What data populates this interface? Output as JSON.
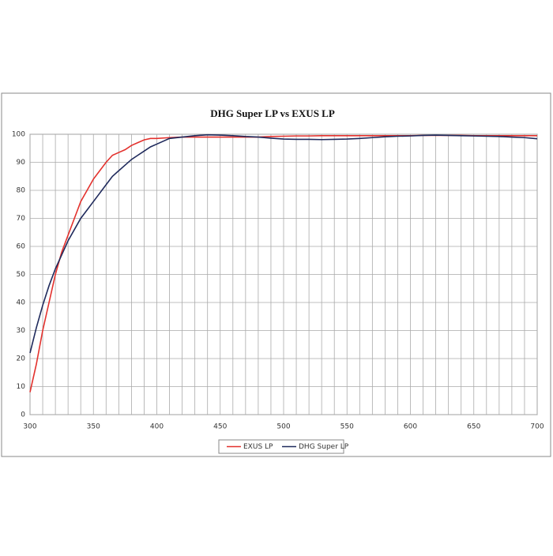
{
  "chart_data": {
    "type": "line",
    "title": "DHG Super LP vs EXUS LP",
    "x": [
      300,
      305,
      310,
      315,
      320,
      325,
      330,
      335,
      340,
      345,
      350,
      355,
      360,
      365,
      370,
      375,
      380,
      385,
      390,
      395,
      400,
      410,
      420,
      430,
      440,
      450,
      460,
      470,
      480,
      490,
      500,
      510,
      520,
      530,
      540,
      550,
      560,
      570,
      580,
      590,
      600,
      610,
      620,
      630,
      640,
      650,
      660,
      670,
      680,
      690,
      700
    ],
    "series": [
      {
        "name": "EXUS LP",
        "color": "#e3312d",
        "values": [
          8,
          18,
          30,
          40,
          50,
          58,
          64,
          70,
          76,
          80,
          84,
          87,
          90,
          92.5,
          93.5,
          94.5,
          96,
          97,
          98,
          98.5,
          98.5,
          98.8,
          99,
          99,
          99,
          99,
          99,
          99,
          99,
          99.2,
          99.3,
          99.4,
          99.4,
          99.5,
          99.5,
          99.5,
          99.5,
          99.5,
          99.5,
          99.5,
          99.5,
          99.6,
          99.6,
          99.6,
          99.6,
          99.5,
          99.5,
          99.5,
          99.5,
          99.5,
          99.5
        ]
      },
      {
        "name": "DHG Super LP",
        "color": "#1f2a5c",
        "values": [
          22,
          31,
          39,
          46,
          52,
          57,
          62,
          66,
          70,
          73,
          76,
          79,
          82,
          85,
          87,
          89,
          91,
          92.5,
          94,
          95.5,
          96.5,
          98.5,
          99,
          99.5,
          99.8,
          99.7,
          99.5,
          99.2,
          99,
          98.6,
          98.3,
          98.2,
          98.2,
          98.1,
          98.2,
          98.3,
          98.5,
          98.8,
          99.1,
          99.3,
          99.4,
          99.6,
          99.7,
          99.6,
          99.5,
          99.4,
          99.3,
          99.2,
          99,
          98.8,
          98.4
        ]
      }
    ],
    "xlim": [
      300,
      700
    ],
    "ylim": [
      0,
      100
    ],
    "xticks": [
      300,
      350,
      400,
      450,
      500,
      550,
      600,
      650,
      700
    ],
    "yticks": [
      0,
      10,
      20,
      30,
      40,
      50,
      60,
      70,
      80,
      90,
      100
    ],
    "xminor": [
      310,
      320,
      330,
      340,
      360,
      370,
      380,
      390,
      410,
      420,
      430,
      440,
      460,
      470,
      480,
      490,
      510,
      520,
      530,
      540,
      560,
      570,
      580,
      590,
      610,
      620,
      630,
      640,
      660,
      670,
      680,
      690
    ],
    "grid": true,
    "legend": "bottom"
  }
}
